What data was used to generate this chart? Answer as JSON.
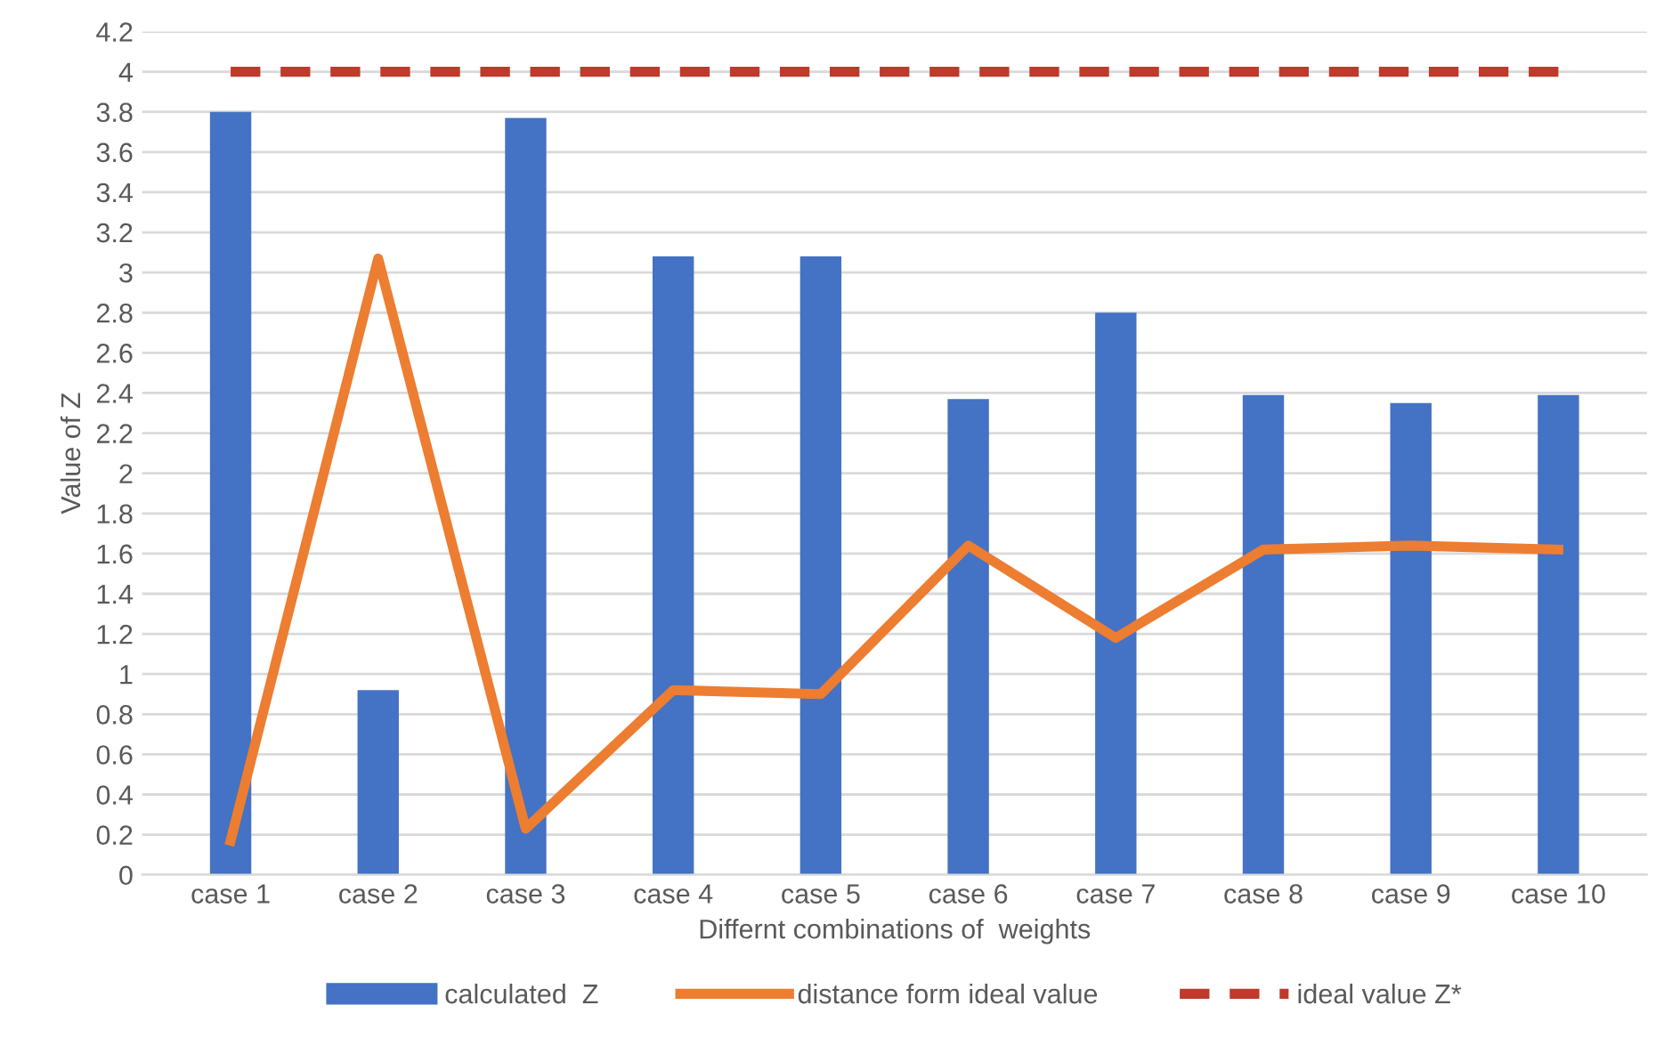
{
  "chart_data": {
    "type": "bar",
    "xlabel": "Differnt combinations of  weights",
    "ylabel": "Value of Z",
    "categories": [
      "case 1",
      "case 2",
      "case 3",
      "case 4",
      "case 5",
      "case 6",
      "case 7",
      "case 8",
      "case 9",
      "case 10"
    ],
    "series": [
      {
        "name": "calculated  Z",
        "color": "#4472c4",
        "values": [
          3.8,
          0.92,
          3.77,
          3.08,
          3.08,
          2.37,
          2.8,
          2.39,
          2.35,
          2.39
        ]
      },
      {
        "name": "distance form ideal value",
        "type": "line",
        "color": "#ed7d31",
        "line_style": "solid",
        "values": [
          0.17,
          3.07,
          0.23,
          0.92,
          0.9,
          1.64,
          1.18,
          1.62,
          1.64,
          1.62
        ]
      },
      {
        "name": "ideal value Z*",
        "type": "line",
        "color": "#c0392b",
        "line_style": "dashed",
        "values": [
          4,
          4,
          4,
          4,
          4,
          4,
          4,
          4,
          4,
          4
        ]
      }
    ],
    "ylim": [
      0,
      4.2
    ],
    "yticks": [
      0,
      0.2,
      0.4,
      0.6,
      0.8,
      1,
      1.2,
      1.4,
      1.6,
      1.8,
      2,
      2.2,
      2.4,
      2.6,
      2.8,
      3,
      3.2,
      3.4,
      3.6,
      3.8,
      4,
      4.2
    ],
    "grid": "y",
    "legend": "bottom"
  }
}
